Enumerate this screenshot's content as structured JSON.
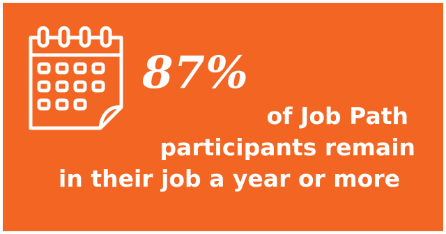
{
  "background_color": "#f26522",
  "foreground_color": "#ffffff",
  "icon": "calendar-icon",
  "stat": {
    "value": "87%"
  },
  "caption": {
    "lines": [
      "of Job Path",
      "participants remain",
      "in their job a year or more"
    ]
  }
}
